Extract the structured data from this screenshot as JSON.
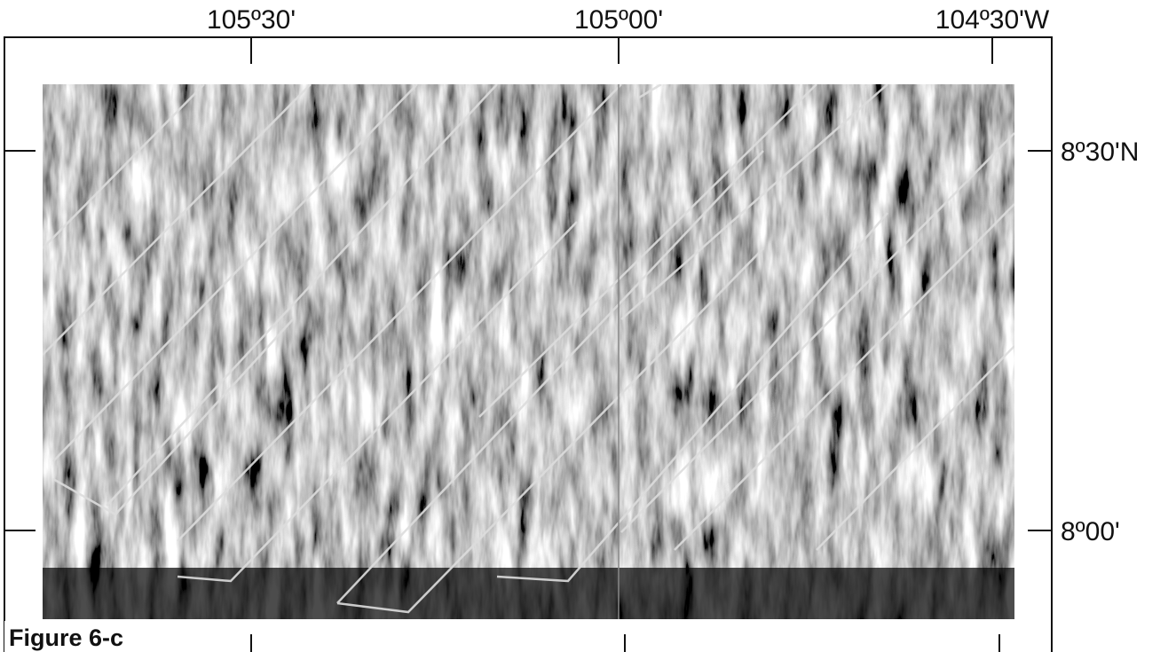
{
  "figure": {
    "label": "Figure 6-c"
  },
  "longitude_labels": [
    "105º30'",
    "105º00'",
    "104º30'W"
  ],
  "latitude_labels": [
    "8º30'N",
    "8º00'"
  ]
}
